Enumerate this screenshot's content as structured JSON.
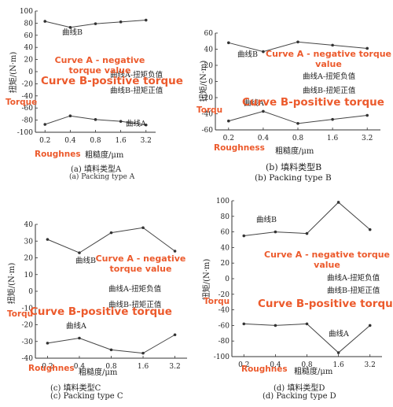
{
  "overlays": {
    "curve_a_label": "Curve A - negative torque value",
    "curve_b_label": "Curve B-positive torque",
    "torque_label": "Torqu",
    "roughness_label": "Roughnes"
  },
  "chart_data": [
    {
      "type": "line",
      "ylabel": "扭矩/(N·m)",
      "xlabel": "粗糙度/μm",
      "x_categories": [
        "0.2",
        "0.4",
        "0.8",
        "1.6",
        "3.2"
      ],
      "ylim": [
        -100,
        100
      ],
      "yticks": [
        100,
        80,
        60,
        40,
        20,
        0,
        -20,
        -40,
        -60,
        -80,
        -100
      ],
      "series": [
        {
          "name": "曲线B",
          "values": [
            83,
            73,
            79,
            82,
            85
          ]
        },
        {
          "name": "曲线A",
          "values": [
            -87,
            -73,
            -79,
            -82,
            -88
          ]
        }
      ],
      "legend": [
        "曲线A-扭矩负值",
        "曲线B-扭矩正值"
      ],
      "caption_cn": "(a) 填料类型A",
      "caption_en": "(a) Packing type A",
      "overlay_labels": {
        "curve_a": "Curve A - negative torque value",
        "curve_b": "Curve B-positive torque",
        "torque": "Torque",
        "roughness": "Roughnes"
      }
    },
    {
      "type": "line",
      "ylabel": "扭矩/(N·m)",
      "xlabel": "粗糙度/μm",
      "x_categories": [
        "0.2",
        "0.4",
        "0.8",
        "1.6",
        "3.2"
      ],
      "ylim": [
        -60,
        60
      ],
      "yticks": [
        60,
        40,
        20,
        0,
        -20,
        -40,
        -60
      ],
      "series": [
        {
          "name": "曲线B",
          "values": [
            48,
            37,
            49,
            45,
            41
          ]
        },
        {
          "name": "曲线A",
          "values": [
            -49,
            -37,
            -52,
            -47,
            -42
          ]
        }
      ],
      "legend": [
        "曲线A-扭矩负值",
        "曲线B-扭矩正值"
      ],
      "caption_cn": "(b) 填料类型B",
      "caption_en": "(b) Packing type B",
      "overlay_labels": {
        "curve_a": "Curve A - negative torque value",
        "curve_b": "Curve B-positive torque",
        "torque": "Torqu",
        "roughness": "Roughness"
      }
    },
    {
      "type": "line",
      "ylabel": "扭矩/(N·m)",
      "xlabel": "粗糙度/μm",
      "x_categories": [
        "0.2",
        "0.4",
        "0.8",
        "1.6",
        "3.2"
      ],
      "ylim": [
        -40,
        40
      ],
      "yticks": [
        40,
        30,
        20,
        10,
        0,
        -10,
        -20,
        -30,
        -40
      ],
      "series": [
        {
          "name": "曲线B",
          "values": [
            31,
            23,
            35,
            38,
            24
          ]
        },
        {
          "name": "曲线A",
          "values": [
            -31,
            -28,
            -35,
            -37,
            -26
          ]
        }
      ],
      "legend": [
        "曲线A-扭矩负值",
        "曲线B-扭矩正值"
      ],
      "caption_cn": "(c) 填料类型C",
      "caption_en": "(c) Packing type C",
      "overlay_labels": {
        "curve_a": "Curve A - negative torque value",
        "curve_b": "Curve B-positive torque",
        "torque": "Torqu",
        "roughness": "Roughnes"
      }
    },
    {
      "type": "line",
      "ylabel": "扭矩/(N·m)",
      "xlabel": "粗糙度/μm",
      "x_categories": [
        "0.2",
        "0.4",
        "0.8",
        "1.6",
        "3.2"
      ],
      "ylim": [
        -100,
        100
      ],
      "yticks": [
        100,
        80,
        60,
        40,
        20,
        0,
        -20,
        -40,
        -60,
        -80,
        -100
      ],
      "series": [
        {
          "name": "曲线B",
          "values": [
            55,
            60,
            58,
            98,
            63
          ]
        },
        {
          "name": "曲线A",
          "values": [
            -58,
            -60,
            -58,
            -95,
            -60
          ]
        }
      ],
      "legend": [
        "曲线A-扭矩负值",
        "曲线B-扭矩正值"
      ],
      "caption_cn": "(d) 填料类型D",
      "caption_en": "(d) Packing type D",
      "overlay_labels": {
        "curve_a": "Curve A - negative torque value",
        "curve_b": "Curve B-positive torque",
        "torque": "Torqu",
        "roughness": "Roughnes"
      }
    }
  ]
}
